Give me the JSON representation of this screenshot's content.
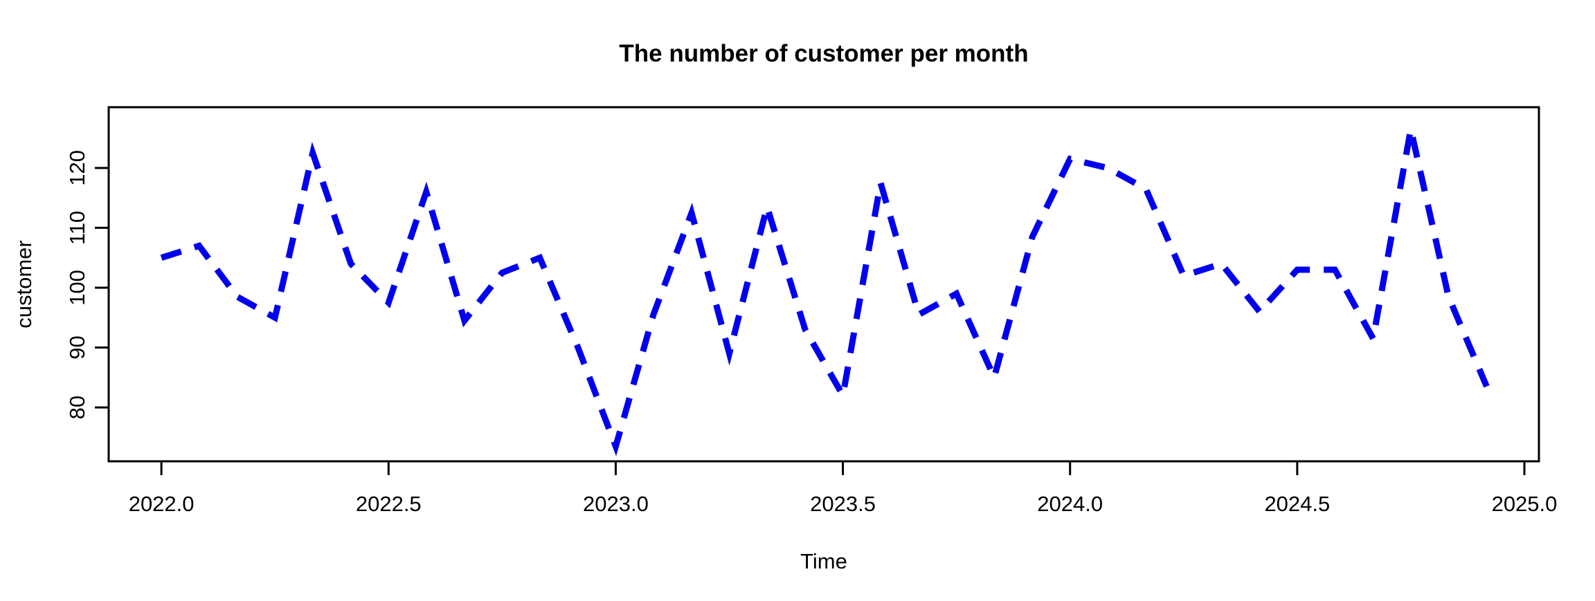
{
  "chart_data": {
    "type": "line",
    "title": "The number of customer per month",
    "xlabel": "Time",
    "ylabel": "customer",
    "series_name": "customer",
    "frequency": 12,
    "start": 2022.0,
    "x": [
      2022.0,
      2022.083,
      2022.167,
      2022.25,
      2022.333,
      2022.417,
      2022.5,
      2022.583,
      2022.667,
      2022.75,
      2022.833,
      2022.917,
      2023.0,
      2023.083,
      2023.167,
      2023.25,
      2023.333,
      2023.417,
      2023.5,
      2023.583,
      2023.667,
      2023.75,
      2023.833,
      2023.917,
      2024.0,
      2024.083,
      2024.167,
      2024.25,
      2024.333,
      2024.417,
      2024.5,
      2024.583,
      2024.667,
      2024.75,
      2024.833,
      2024.917
    ],
    "values": [
      105,
      107,
      98.5,
      95,
      122.5,
      104,
      97.5,
      116,
      94.5,
      102.5,
      105,
      90,
      73.5,
      95.5,
      112.5,
      89,
      113.5,
      93,
      82,
      117.5,
      95.5,
      99,
      85,
      108.5,
      121.5,
      120,
      116.5,
      102,
      104,
      96,
      103,
      103,
      91.5,
      126.5,
      98.5,
      83.5
    ],
    "x_ticks": [
      {
        "label": "2022.0",
        "value": 2022.0
      },
      {
        "label": "2022.5",
        "value": 2022.5
      },
      {
        "label": "2023.0",
        "value": 2023.0
      },
      {
        "label": "2023.5",
        "value": 2023.5
      },
      {
        "label": "2024.0",
        "value": 2024.0
      },
      {
        "label": "2024.5",
        "value": 2024.5
      },
      {
        "label": "2025.0",
        "value": 2025.0
      }
    ],
    "y_ticks": [
      {
        "label": "80",
        "value": 80
      },
      {
        "label": "90",
        "value": 90
      },
      {
        "label": "100",
        "value": 100
      },
      {
        "label": "110",
        "value": 110
      },
      {
        "label": "120",
        "value": 120
      }
    ],
    "xlim": [
      2021.884,
      2025.032
    ],
    "ylim": [
      71.0,
      130.15
    ],
    "grid": false,
    "legend": "none",
    "line_color": "#0000EE",
    "line_style": "dashed",
    "axis_color": "#000000",
    "background_color": "#ffffff"
  }
}
